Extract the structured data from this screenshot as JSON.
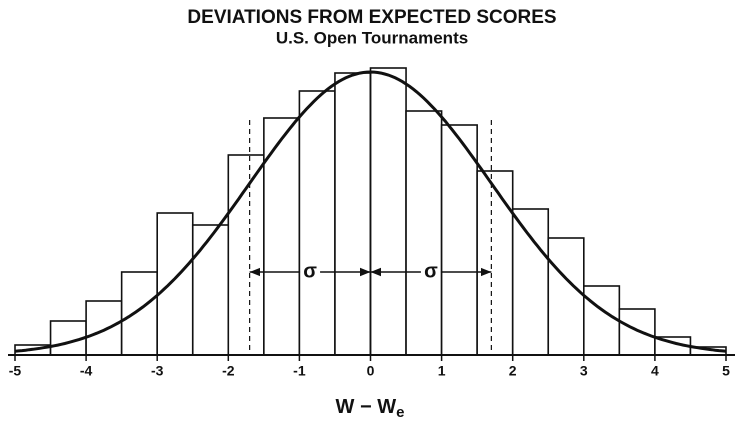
{
  "chart_data": {
    "type": "histogram",
    "title": "DEVIATIONS FROM EXPECTED SCORES",
    "subtitle": "U.S. Open Tournaments",
    "xlabel": "W − W",
    "xlabel_subscript": "e",
    "bins": [
      -5,
      -4.5,
      -4,
      -3.5,
      -3,
      -2.5,
      -2,
      -1.5,
      -1,
      -0.5,
      0,
      0.5,
      1,
      1.5,
      2,
      2.5,
      3,
      3.5,
      4,
      4.5,
      5
    ],
    "values": [
      10,
      34,
      54,
      83,
      142,
      130,
      200,
      237,
      264,
      282,
      287,
      244,
      230,
      184,
      146,
      117,
      69,
      46,
      18,
      8
    ],
    "color": "#ffffff",
    "xlim": [
      -5,
      5
    ],
    "xticks": [
      -5,
      -4,
      -3,
      -2,
      -1,
      0,
      1,
      2,
      3,
      4,
      5
    ],
    "ylim": [
      0,
      300
    ],
    "curve": {
      "mean": 0,
      "sd": 1.7,
      "peak": 283
    },
    "annotations": [
      "σ",
      "σ"
    ]
  }
}
